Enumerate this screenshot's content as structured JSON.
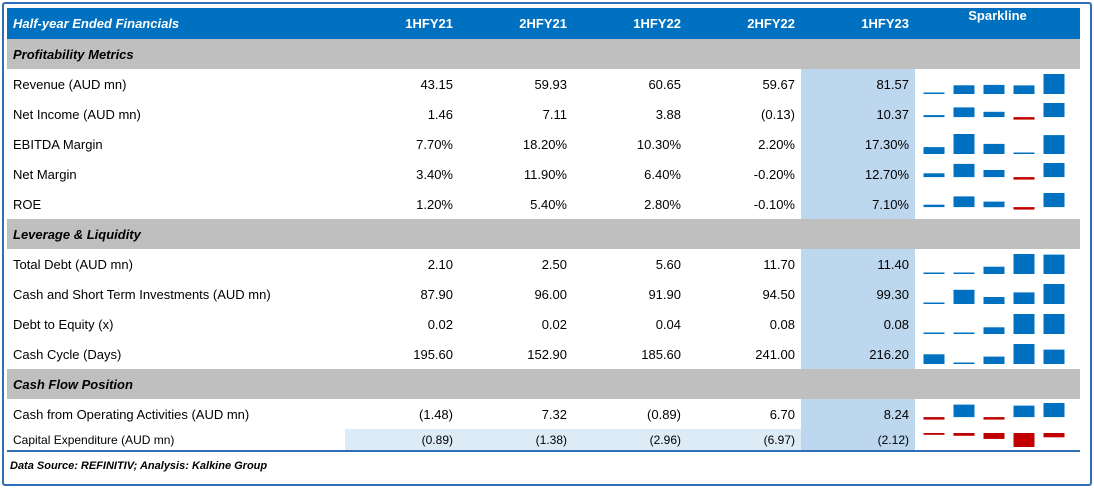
{
  "header": {
    "title": "Half-year Ended Financials",
    "periods": [
      "1HFY21",
      "2HFY21",
      "1HFY22",
      "2HFY22",
      "1HFY23"
    ],
    "sparkline_label": "Sparkline"
  },
  "sections": [
    {
      "title": "Profitability Metrics",
      "rows": [
        {
          "label": "Revenue (AUD mn)",
          "values": [
            "43.15",
            "59.93",
            "60.65",
            "59.67",
            "81.57"
          ],
          "series": [
            43.15,
            59.93,
            60.65,
            59.67,
            81.57
          ]
        },
        {
          "label": "Net Income (AUD mn)",
          "values": [
            "1.46",
            "7.11",
            "3.88",
            "(0.13)",
            "10.37"
          ],
          "series": [
            1.46,
            7.11,
            3.88,
            -0.13,
            10.37
          ]
        },
        {
          "label": "EBITDA Margin",
          "values": [
            "7.70%",
            "18.20%",
            "10.30%",
            "2.20%",
            "17.30%"
          ],
          "series": [
            7.7,
            18.2,
            10.3,
            2.2,
            17.3
          ]
        },
        {
          "label": "Net Margin",
          "values": [
            "3.40%",
            "11.90%",
            "6.40%",
            "-0.20%",
            "12.70%"
          ],
          "series": [
            3.4,
            11.9,
            6.4,
            -0.2,
            12.7
          ]
        },
        {
          "label": "ROE",
          "values": [
            "1.20%",
            "5.40%",
            "2.80%",
            "-0.10%",
            "7.10%"
          ],
          "series": [
            1.2,
            5.4,
            2.8,
            -0.1,
            7.1
          ]
        }
      ]
    },
    {
      "title": "Leverage & Liquidity",
      "rows": [
        {
          "label": "Total Debt (AUD mn)",
          "values": [
            "2.10",
            "2.50",
            "5.60",
            "11.70",
            "11.40"
          ],
          "series": [
            2.1,
            2.5,
            5.6,
            11.7,
            11.4
          ]
        },
        {
          "label": "Cash and Short Term Investments (AUD mn)",
          "values": [
            "87.90",
            "96.00",
            "91.90",
            "94.50",
            "99.30"
          ],
          "series": [
            87.9,
            96.0,
            91.9,
            94.5,
            99.3
          ]
        },
        {
          "label": "Debt to Equity (x)",
          "values": [
            "0.02",
            "0.02",
            "0.04",
            "0.08",
            "0.08"
          ],
          "series": [
            0.02,
            0.02,
            0.04,
            0.08,
            0.08
          ]
        },
        {
          "label": "Cash Cycle (Days)",
          "values": [
            "195.60",
            "152.90",
            "185.60",
            "241.00",
            "216.20"
          ],
          "series": [
            195.6,
            152.9,
            185.6,
            241.0,
            216.2
          ]
        }
      ]
    },
    {
      "title": "Cash Flow Position",
      "rows": [
        {
          "label": "Cash from Operating Activities (AUD mn)",
          "values": [
            "(1.48)",
            "7.32",
            "(0.89)",
            "6.70",
            "8.24"
          ],
          "series": [
            -1.48,
            7.32,
            -0.89,
            6.7,
            8.24
          ]
        },
        {
          "label": "Capital Expenditure (AUD mn)",
          "values": [
            "(0.89)",
            "(1.38)",
            "(2.96)",
            "(6.97)",
            "(2.12)"
          ],
          "series": [
            -0.89,
            -1.38,
            -2.96,
            -6.97,
            -2.12
          ]
        }
      ]
    }
  ],
  "footer": {
    "source": "Data Source: REFINITIV; Analysis: Kalkine Group"
  },
  "colors": {
    "header_blue": "#0070c0",
    "section_gray": "#bfbfbf",
    "highlight_blue": "#bdd7ee",
    "positive_bar": "#0070c0",
    "negative_bar": "#c00000"
  }
}
